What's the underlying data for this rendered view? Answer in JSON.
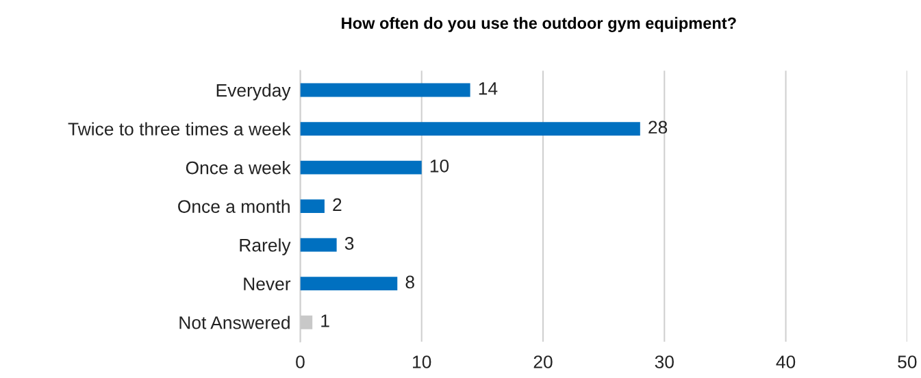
{
  "chart_data": {
    "type": "bar",
    "orientation": "horizontal",
    "title": "How often do you use the outdoor gym equipment?",
    "categories": [
      "Everyday",
      "Twice to three times a week",
      "Once a week",
      "Once a month",
      "Rarely",
      "Never",
      "Not Answered"
    ],
    "values": [
      14,
      28,
      10,
      2,
      3,
      8,
      1
    ],
    "colors": [
      "#0070c0",
      "#0070c0",
      "#0070c0",
      "#0070c0",
      "#0070c0",
      "#0070c0",
      "#c8c8c8"
    ],
    "xlim": [
      0,
      50
    ],
    "xticks": [
      0,
      10,
      20,
      30,
      40,
      50
    ],
    "grid": "x",
    "data_labels": true
  }
}
